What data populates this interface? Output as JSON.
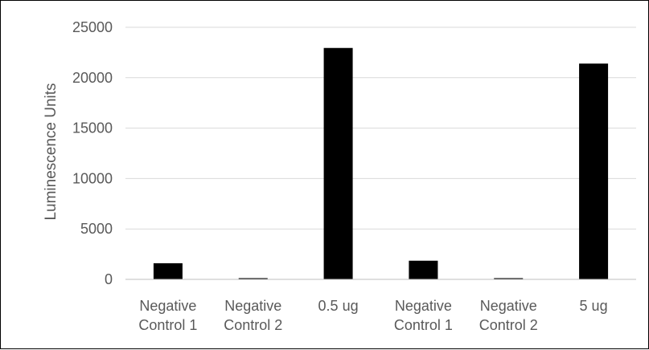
{
  "chart_data": {
    "type": "bar",
    "title": "",
    "xlabel": "",
    "ylabel": "Luminescence Units",
    "categories": [
      [
        "Negative",
        "Control 1"
      ],
      [
        "Negative",
        "Control 2"
      ],
      [
        "0.5 ug"
      ],
      [
        "Negative",
        "Control 1"
      ],
      [
        "Negative",
        "Control 2"
      ],
      [
        "5 ug"
      ]
    ],
    "values": [
      1600,
      80,
      22950,
      1850,
      80,
      21400
    ],
    "ylim": [
      0,
      25000
    ],
    "yticks": [
      0,
      5000,
      10000,
      15000,
      20000,
      25000
    ],
    "grid": true,
    "legend": "none",
    "bar_color": "#000000",
    "grid_color": "#d9d9d9",
    "axis_color": "#bfbfbf",
    "text_color": "#595959"
  }
}
